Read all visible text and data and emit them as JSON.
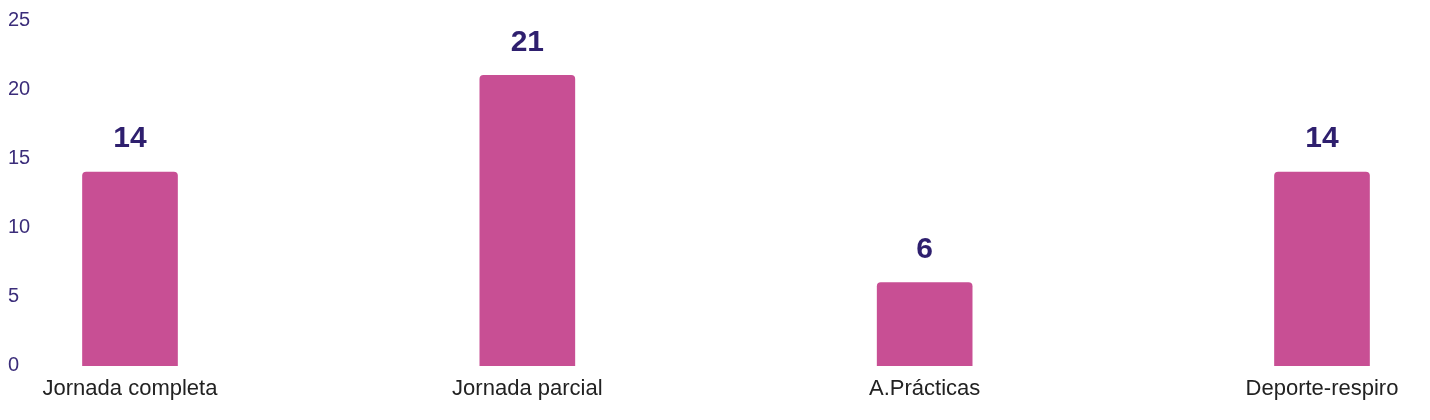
{
  "chart_data": {
    "type": "bar",
    "categories": [
      "Jornada completa",
      "Jornada parcial",
      "A.Prácticas",
      "Deporte-respiro"
    ],
    "values": [
      14,
      21,
      6,
      14
    ],
    "color": "#c84f94",
    "ylim": [
      0,
      25
    ],
    "yticks": [
      0,
      5,
      10,
      15,
      20,
      25
    ],
    "grid": false,
    "data_labels": true
  }
}
